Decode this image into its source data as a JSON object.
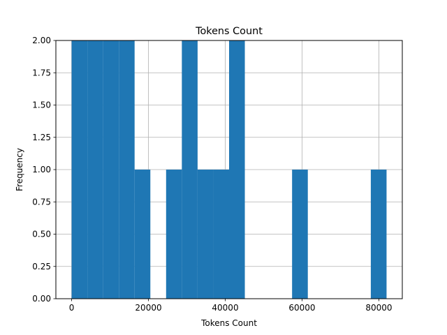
{
  "chart_data": {
    "type": "bar",
    "title": "Tokens Count",
    "xlabel": "Tokens Count",
    "ylabel": "Frequency",
    "xlim": [
      -4100,
      86100
    ],
    "ylim": [
      0,
      2
    ],
    "grid": true,
    "bar_color": "#1f77b4",
    "bin_edges": [
      0,
      4100,
      8200,
      12300,
      16400,
      20500,
      24600,
      28700,
      32800,
      36900,
      41000,
      45100,
      49200,
      53300,
      57400,
      61500,
      65600,
      69700,
      73800,
      77900,
      82000
    ],
    "values": [
      2,
      2,
      2,
      2,
      1,
      0,
      1,
      2,
      1,
      1,
      2,
      0,
      0,
      0,
      1,
      0,
      0,
      0,
      0,
      1
    ],
    "xticks": [
      0,
      20000,
      40000,
      60000,
      80000
    ],
    "yticks": [
      0.0,
      0.25,
      0.5,
      0.75,
      1.0,
      1.25,
      1.5,
      1.75,
      2.0
    ],
    "xtick_labels": [
      "0",
      "20000",
      "40000",
      "60000",
      "80000"
    ],
    "ytick_labels": [
      "0.00",
      "0.25",
      "0.50",
      "0.75",
      "1.00",
      "1.25",
      "1.50",
      "1.75",
      "2.00"
    ]
  }
}
